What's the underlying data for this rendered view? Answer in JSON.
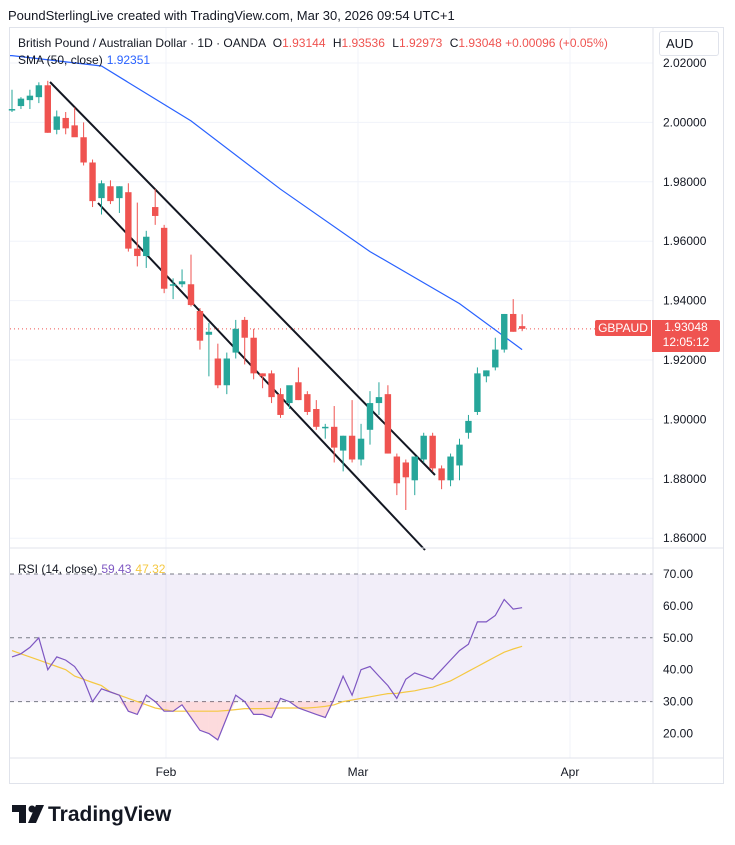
{
  "header": "PoundSterlingLive created with TradingView.com, Mar 30, 2026 09:54 UTC+1",
  "currency": "AUD",
  "instrument": {
    "title": "British Pound / Australian Dollar · 1D · OANDA",
    "o_label": "O",
    "o": "1.93144",
    "h_label": "H",
    "h": "1.93536",
    "l_label": "L",
    "l": "1.92973",
    "c_label": "C",
    "c": "1.93048",
    "change": "+0.00096 (+0.05%)"
  },
  "sma_legend": {
    "label": "SMA (50, close)",
    "value": "1.92351"
  },
  "rsi_legend": {
    "label": "RSI (14, close)",
    "rsi": "59.43",
    "ma": "47.32"
  },
  "price_tag": {
    "symbol": "GBPAUD",
    "price": "1.93048",
    "countdown": "12:05:12"
  },
  "footer_logo": "TradingView",
  "colors": {
    "up": "#26a69a",
    "down": "#ef5350",
    "sma": "#2962ff",
    "rsi": "#7e57c2",
    "rsi_ma": "#f5c842",
    "channel": "#131722"
  },
  "chart_data": [
    {
      "type": "candlestick",
      "title": "British Pound / Australian Dollar · 1D · OANDA",
      "x_ticks": [
        "Feb",
        "Mar",
        "Apr"
      ],
      "y_ticks": [
        "1.86000",
        "1.88000",
        "1.90000",
        "1.92000",
        "1.94000",
        "1.96000",
        "1.98000",
        "2.00000",
        "2.02000"
      ],
      "ylim": [
        1.855,
        2.022
      ],
      "last_price": 1.93048,
      "candles": [
        {
          "o": 2.0045,
          "h": 2.011,
          "l": 2.0035,
          "c": 2.0045
        },
        {
          "o": 2.0055,
          "h": 2.0085,
          "l": 2.0045,
          "c": 2.008
        },
        {
          "o": 2.0075,
          "h": 2.011,
          "l": 2.0045,
          "c": 2.009
        },
        {
          "o": 2.0085,
          "h": 2.0135,
          "l": 2.0065,
          "c": 2.0125
        },
        {
          "o": 2.0125,
          "h": 2.014,
          "l": 1.9965,
          "c": 1.9965
        },
        {
          "o": 1.9975,
          "h": 2.004,
          "l": 1.996,
          "c": 2.002
        },
        {
          "o": 2.0015,
          "h": 2.0035,
          "l": 1.996,
          "c": 1.998
        },
        {
          "o": 1.999,
          "h": 2.005,
          "l": 1.9955,
          "c": 1.995
        },
        {
          "o": 1.995,
          "h": 2.0,
          "l": 1.9855,
          "c": 1.9865
        },
        {
          "o": 1.9865,
          "h": 1.9875,
          "l": 1.9715,
          "c": 1.9735
        },
        {
          "o": 1.9745,
          "h": 1.9805,
          "l": 1.969,
          "c": 1.9795
        },
        {
          "o": 1.9785,
          "h": 1.9805,
          "l": 1.9725,
          "c": 1.9735
        },
        {
          "o": 1.9745,
          "h": 1.9785,
          "l": 1.9695,
          "c": 1.9785
        },
        {
          "o": 1.9765,
          "h": 1.9795,
          "l": 1.9565,
          "c": 1.9575
        },
        {
          "o": 1.9575,
          "h": 1.973,
          "l": 1.9515,
          "c": 1.955
        },
        {
          "o": 1.955,
          "h": 1.9635,
          "l": 1.951,
          "c": 1.9615
        },
        {
          "o": 1.9715,
          "h": 1.9775,
          "l": 1.9655,
          "c": 1.9685
        },
        {
          "o": 1.9645,
          "h": 1.9655,
          "l": 1.9425,
          "c": 1.944
        },
        {
          "o": 1.945,
          "h": 1.9475,
          "l": 1.9405,
          "c": 1.9455
        },
        {
          "o": 1.9455,
          "h": 1.9505,
          "l": 1.9445,
          "c": 1.9465
        },
        {
          "o": 1.9455,
          "h": 1.9555,
          "l": 1.938,
          "c": 1.9385
        },
        {
          "o": 1.9365,
          "h": 1.9375,
          "l": 1.9235,
          "c": 1.9265
        },
        {
          "o": 1.9285,
          "h": 1.9325,
          "l": 1.9145,
          "c": 1.9295
        },
        {
          "o": 1.9205,
          "h": 1.9255,
          "l": 1.9105,
          "c": 1.9115
        },
        {
          "o": 1.9115,
          "h": 1.9225,
          "l": 1.9085,
          "c": 1.9205
        },
        {
          "o": 1.9225,
          "h": 1.9335,
          "l": 1.9205,
          "c": 1.9305
        },
        {
          "o": 1.9335,
          "h": 1.9345,
          "l": 1.9185,
          "c": 1.9275
        },
        {
          "o": 1.9275,
          "h": 1.9305,
          "l": 1.9135,
          "c": 1.9155
        },
        {
          "o": 1.9155,
          "h": 1.9155,
          "l": 1.9105,
          "c": 1.9145
        },
        {
          "o": 1.9155,
          "h": 1.9165,
          "l": 1.9055,
          "c": 1.9075
        },
        {
          "o": 1.9085,
          "h": 1.9105,
          "l": 1.9005,
          "c": 1.9015
        },
        {
          "o": 1.9055,
          "h": 1.9105,
          "l": 1.9035,
          "c": 1.9115
        },
        {
          "o": 1.9125,
          "h": 1.9175,
          "l": 1.9065,
          "c": 1.9065
        },
        {
          "o": 1.9085,
          "h": 1.9095,
          "l": 1.9015,
          "c": 1.9025
        },
        {
          "o": 1.9035,
          "h": 1.9065,
          "l": 1.8965,
          "c": 1.8975
        },
        {
          "o": 1.8975,
          "h": 1.8985,
          "l": 1.8935,
          "c": 1.8975
        },
        {
          "o": 1.8975,
          "h": 1.9045,
          "l": 1.8855,
          "c": 1.8905
        },
        {
          "o": 1.8895,
          "h": 1.8945,
          "l": 1.8825,
          "c": 1.8945
        },
        {
          "o": 1.8945,
          "h": 1.9065,
          "l": 1.8855,
          "c": 1.8865
        },
        {
          "o": 1.8865,
          "h": 1.8985,
          "l": 1.8845,
          "c": 1.8935
        },
        {
          "o": 1.8965,
          "h": 1.9095,
          "l": 1.8915,
          "c": 1.9055
        },
        {
          "o": 1.9055,
          "h": 1.9125,
          "l": 1.9015,
          "c": 1.9075
        },
        {
          "o": 1.9085,
          "h": 1.9115,
          "l": 1.8885,
          "c": 1.8885
        },
        {
          "o": 1.8875,
          "h": 1.8885,
          "l": 1.8745,
          "c": 1.8785
        },
        {
          "o": 1.8855,
          "h": 1.8865,
          "l": 1.8695,
          "c": 1.8805
        },
        {
          "o": 1.8795,
          "h": 1.8865,
          "l": 1.8745,
          "c": 1.8875
        },
        {
          "o": 1.8865,
          "h": 1.8955,
          "l": 1.8855,
          "c": 1.8945
        },
        {
          "o": 1.8945,
          "h": 1.8955,
          "l": 1.8825,
          "c": 1.8835
        },
        {
          "o": 1.8835,
          "h": 1.8845,
          "l": 1.8765,
          "c": 1.8795
        },
        {
          "o": 1.8795,
          "h": 1.8885,
          "l": 1.8775,
          "c": 1.8875
        },
        {
          "o": 1.8845,
          "h": 1.8935,
          "l": 1.8795,
          "c": 1.8915
        },
        {
          "o": 1.8955,
          "h": 1.9015,
          "l": 1.8935,
          "c": 1.8995
        },
        {
          "o": 1.9025,
          "h": 1.9175,
          "l": 1.9015,
          "c": 1.9155
        },
        {
          "o": 1.9145,
          "h": 1.9165,
          "l": 1.9125,
          "c": 1.9165
        },
        {
          "o": 1.9175,
          "h": 1.9275,
          "l": 1.9165,
          "c": 1.9235
        },
        {
          "o": 1.9235,
          "h": 1.9355,
          "l": 1.9225,
          "c": 1.9355
        },
        {
          "o": 1.9355,
          "h": 1.9405,
          "l": 1.9295,
          "c": 1.9295
        },
        {
          "o": 1.9314,
          "h": 1.9354,
          "l": 1.9297,
          "c": 1.9305
        }
      ]
    },
    {
      "type": "line",
      "series": [
        {
          "name": "SMA (50, close)",
          "x": [
            0,
            10,
            20,
            30,
            40,
            50,
            57
          ],
          "values": [
            2.0225,
            2.019,
            2.0005,
            1.9775,
            1.9565,
            1.939,
            1.9235
          ]
        }
      ]
    },
    {
      "type": "line",
      "title": "RSI (14, close)",
      "ylim": [
        12,
        74
      ],
      "y_ticks": [
        "20.00",
        "30.00",
        "40.00",
        "50.00",
        "60.00",
        "70.00"
      ],
      "band": [
        30,
        70
      ],
      "series": [
        {
          "name": "RSI (14, close)",
          "values": [
            44,
            45,
            47,
            50,
            40,
            44,
            43,
            41,
            37,
            30,
            34,
            33,
            32,
            27,
            26,
            32,
            30,
            27,
            27,
            29,
            25,
            21,
            20,
            18,
            25,
            32,
            30,
            26,
            26,
            25,
            31,
            30,
            28,
            27,
            26,
            25,
            31,
            38,
            32,
            40,
            41,
            38,
            35,
            31,
            37,
            39,
            38,
            37,
            40,
            43,
            46,
            48,
            55,
            55,
            57,
            62,
            59,
            59.43
          ]
        },
        {
          "name": "RSI MA",
          "values": [
            46,
            45,
            44,
            43,
            42,
            41,
            40,
            38,
            37,
            36,
            35,
            33,
            32,
            31,
            30,
            29,
            28,
            27.5,
            27,
            27,
            27,
            27,
            27,
            27,
            27.2,
            27.5,
            27.8,
            27.8,
            27.8,
            27.9,
            28,
            28,
            28,
            28,
            28.2,
            28.5,
            29,
            30,
            30.5,
            31,
            31.5,
            32,
            32.5,
            32.6,
            33,
            33.4,
            34,
            34.5,
            35.5,
            36.5,
            38,
            39.5,
            41,
            42.5,
            44,
            45.5,
            46.5,
            47.32
          ]
        }
      ]
    }
  ]
}
